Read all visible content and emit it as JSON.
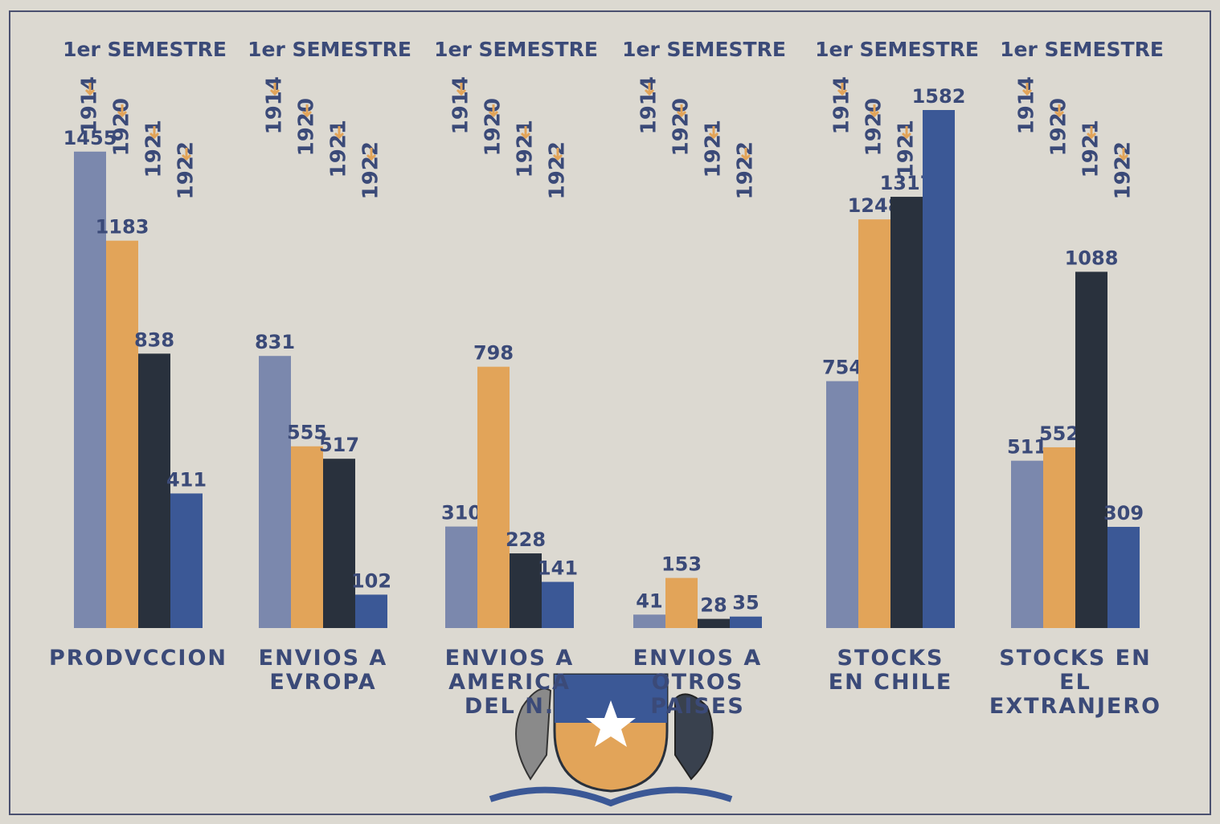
{
  "chart_data": {
    "type": "bar",
    "group_header": "1er SEMESTRE",
    "categories": [
      "PRODVCCION",
      "ENVIOS A\nEVROPA",
      "ENVIOS A\nAMERICA\nDEL N.",
      "ENVIOS A\nOTROS\nPAISES",
      "STOCKS\nEN CHILE",
      "STOCKS EN\nEL EXTRANJERO"
    ],
    "series": [
      {
        "name": "1914",
        "color": "#7b88ad",
        "values": [
          1455,
          831,
          310,
          41,
          754,
          511
        ]
      },
      {
        "name": "1920",
        "color": "#e2a459",
        "values": [
          1183,
          555,
          798,
          153,
          1248,
          552
        ]
      },
      {
        "name": "1921",
        "color": "#29313d",
        "values": [
          838,
          517,
          228,
          28,
          1317,
          1088
        ]
      },
      {
        "name": "1922",
        "color": "#3b5896",
        "values": [
          411,
          102,
          141,
          35,
          1582,
          309
        ]
      }
    ]
  }
}
